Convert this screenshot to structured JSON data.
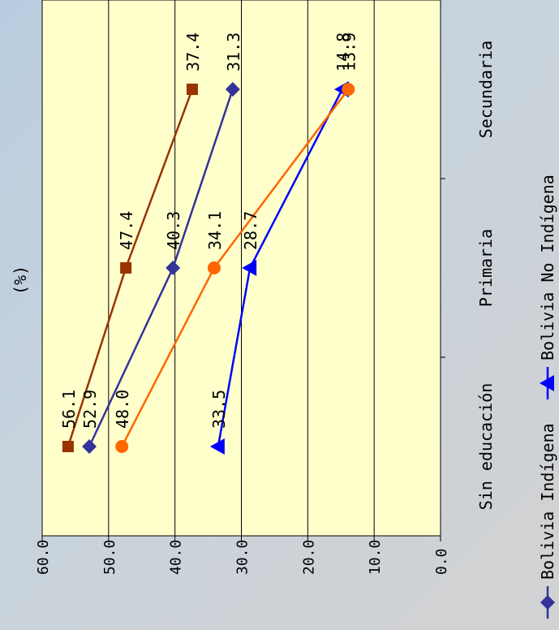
{
  "chart_data": {
    "type": "line",
    "orientation": "rotated-90-clockwise",
    "ylabel": "(%)",
    "categories": [
      "Sin educación",
      "Primaria",
      "Secundaria"
    ],
    "ylim": [
      0,
      60
    ],
    "ytick_labels": [
      "0.0",
      "10.0",
      "20.0",
      "30.0",
      "40.0",
      "50.0",
      "60.0"
    ],
    "grid": true,
    "plot_background": "#ffffcc",
    "legend_position": "bottom",
    "series": [
      {
        "name": "Bolivia Indígena",
        "legend_label": "Bolivia Indígena",
        "color": "#333399",
        "marker": "diamond",
        "values": [
          52.9,
          40.3,
          31.3
        ],
        "labels": [
          "52.9",
          "40.3",
          "31.3"
        ]
      },
      {
        "name": "Bolivia No Indígena",
        "legend_label": "Bolivia No Indígena",
        "color": "#0000ff",
        "marker": "triangle",
        "values": [
          33.5,
          28.7,
          14.8
        ],
        "labels": [
          "33.5",
          "28.7",
          "14.8"
        ]
      },
      {
        "name": "",
        "color": "#993300",
        "marker": "square",
        "values": [
          56.1,
          47.4,
          37.4
        ],
        "labels": [
          "56.1",
          "47.4",
          "37.4"
        ]
      },
      {
        "name": "",
        "color": "#ff6600",
        "marker": "circle",
        "values": [
          48.0,
          34.1,
          13.9
        ],
        "labels": [
          "48.0",
          "34.1",
          "13.9"
        ]
      }
    ]
  }
}
